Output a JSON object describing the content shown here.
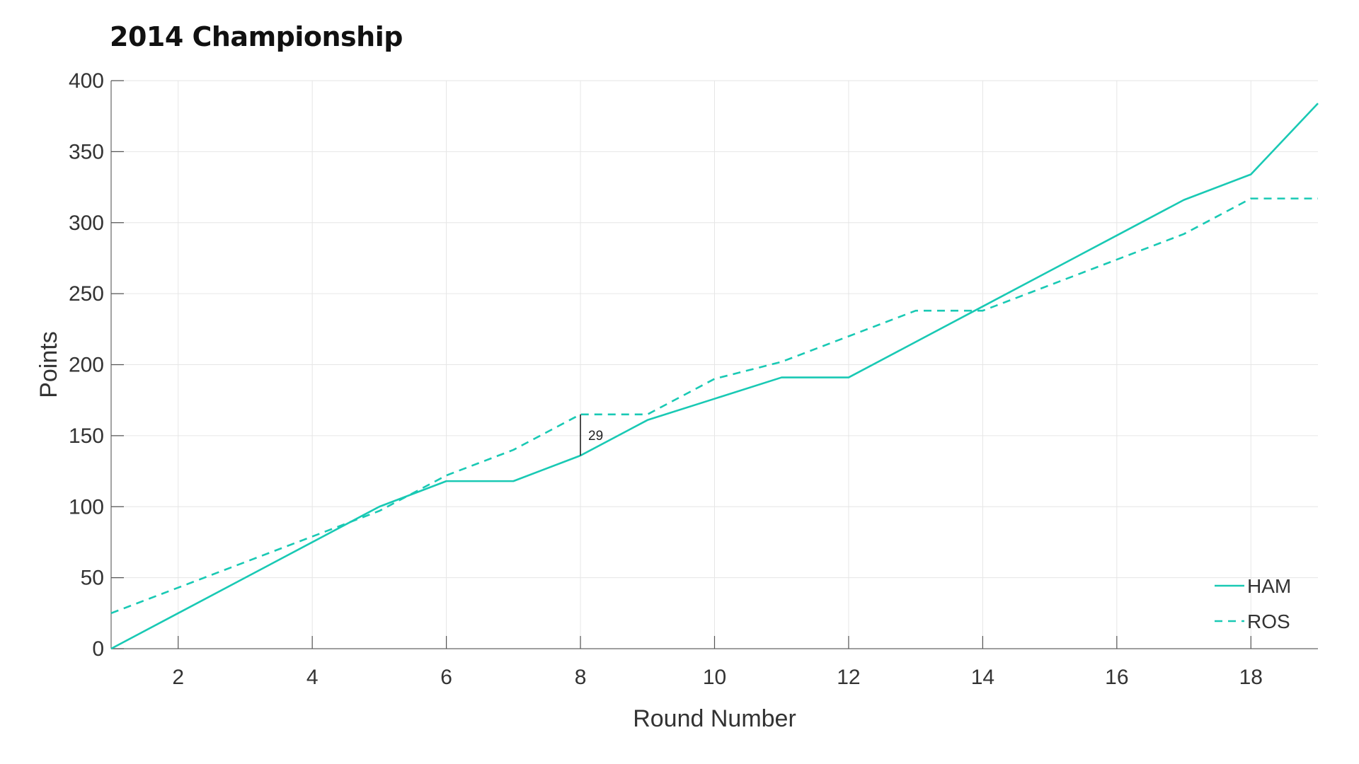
{
  "chart_data": {
    "type": "line",
    "title": "2014 Championship",
    "xlabel": "Round Number",
    "ylabel": "Points",
    "xlim": [
      1,
      19
    ],
    "ylim": [
      0,
      400
    ],
    "xticks": [
      2,
      4,
      6,
      8,
      10,
      12,
      14,
      16,
      18
    ],
    "yticks": [
      0,
      50,
      100,
      150,
      200,
      250,
      300,
      350,
      400
    ],
    "grid": true,
    "legend_position": "bottom-right",
    "line_color": "#19c9b4",
    "x": [
      1,
      2,
      3,
      4,
      5,
      6,
      7,
      8,
      9,
      10,
      11,
      12,
      13,
      14,
      15,
      16,
      17,
      18,
      19
    ],
    "series": [
      {
        "name": "HAM",
        "style": "solid",
        "values": [
          0,
          25,
          50,
          75,
          100,
          118,
          118,
          136,
          161,
          176,
          191,
          191,
          216,
          241,
          266,
          291,
          316,
          334,
          384
        ]
      },
      {
        "name": "ROS",
        "style": "dashed",
        "values": [
          25,
          43,
          61,
          79,
          97,
          122,
          140,
          165,
          165,
          190,
          202,
          220,
          238,
          238,
          256,
          274,
          292,
          317,
          317
        ]
      }
    ],
    "annotations": [
      {
        "x": 8,
        "y_from": 136,
        "y_to": 165,
        "text": "29"
      }
    ]
  }
}
